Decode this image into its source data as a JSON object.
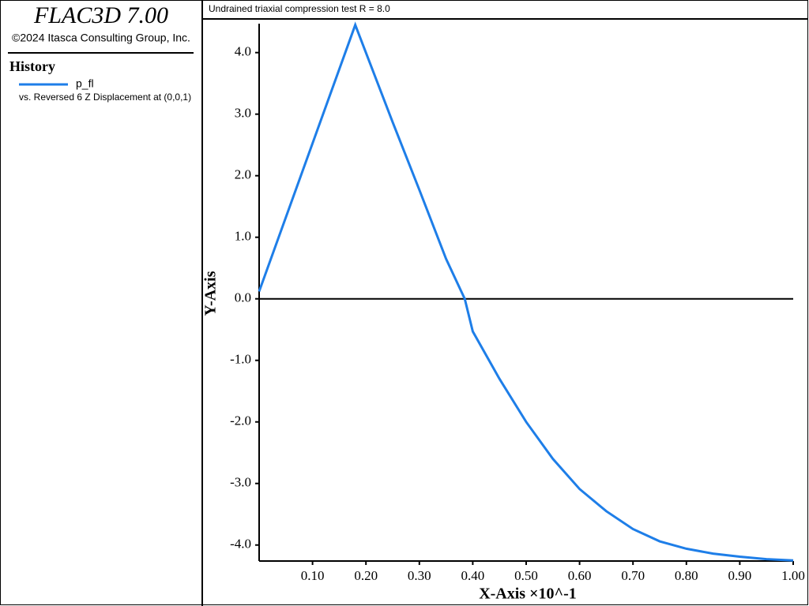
{
  "panel": {
    "product": "FLAC3D 7.00",
    "copyright": "©2024 Itasca Consulting Group, Inc.",
    "section": "History",
    "history_note": "vs. Reversed 6 Z Displacement at (0,0,1)"
  },
  "chart_data": {
    "type": "line",
    "title": "Undrained triaxial compression test R = 8.0",
    "x_label": "X-Axis ×10^-1",
    "y_label": "Y-Axis",
    "x": [
      0,
      0.18,
      0.25,
      0.3,
      0.35,
      0.385,
      0.4,
      0.45,
      0.5,
      0.55,
      0.6,
      0.65,
      0.7,
      0.75,
      0.8,
      0.85,
      0.9,
      0.95,
      1.0
    ],
    "series": [
      {
        "name": "p_fl",
        "color": "#1e7ee8",
        "values": [
          0.12,
          4.45,
          2.87,
          1.77,
          0.65,
          0,
          -0.53,
          -1.3,
          -2.0,
          -2.6,
          -3.09,
          -3.45,
          -3.74,
          -3.94,
          -4.06,
          -4.14,
          -4.19,
          -4.23,
          -4.25
        ]
      }
    ],
    "xlim": [
      0,
      1.0
    ],
    "ylim": [
      -4.26,
      4.47
    ],
    "xticks": [
      {
        "value": 0.1,
        "label": "0.10"
      },
      {
        "value": 0.2,
        "label": "0.20"
      },
      {
        "value": 0.3,
        "label": "0.30"
      },
      {
        "value": 0.4,
        "label": "0.40"
      },
      {
        "value": 0.5,
        "label": "0.50"
      },
      {
        "value": 0.6,
        "label": "0.60"
      },
      {
        "value": 0.7,
        "label": "0.70"
      },
      {
        "value": 0.8,
        "label": "0.80"
      },
      {
        "value": 0.9,
        "label": "0.90"
      },
      {
        "value": 1.0,
        "label": "1.00"
      }
    ],
    "yticks": [
      {
        "value": -4,
        "label": "-4.0"
      },
      {
        "value": -3,
        "label": "-3.0"
      },
      {
        "value": -2,
        "label": "-2.0"
      },
      {
        "value": -1,
        "label": "-1.0"
      },
      {
        "value": 0,
        "label": "0.0"
      },
      {
        "value": 1,
        "label": "1.0"
      },
      {
        "value": 2,
        "label": "2.0"
      },
      {
        "value": 3,
        "label": "3.0"
      },
      {
        "value": 4,
        "label": "4.0"
      }
    ],
    "zero_line": true
  }
}
